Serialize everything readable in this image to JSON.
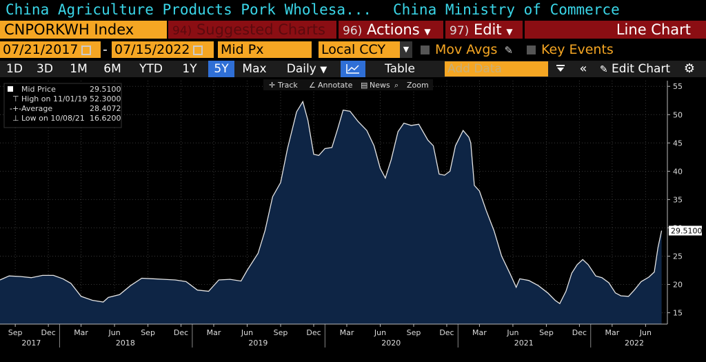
{
  "header": {
    "security_title": "China Agriculture Products Pork Wholesa...",
    "source": "China Ministry of Commerce"
  },
  "ticker": {
    "symbol": "CNPORKWH Index",
    "suggested_num": "94)",
    "suggested_label": "Suggested Charts",
    "actions_num": "96)",
    "actions_label": "Actions",
    "edit_num": "97)",
    "edit_label": "Edit",
    "chart_type": "Line Chart"
  },
  "dates": {
    "start": "07/21/2017",
    "dash": "-",
    "end": "07/15/2022",
    "field": "Mid Px",
    "currency": "Local CCY",
    "mov_avgs": "Mov Avgs",
    "key_events": "Key Events"
  },
  "controls": {
    "periods": [
      "1D",
      "3D",
      "1M",
      "6M",
      "YTD",
      "1Y",
      "5Y",
      "Max"
    ],
    "active_period": "5Y",
    "frequency": "Daily",
    "table": "Table",
    "add_data_placeholder": "Add Data",
    "edit_chart": "Edit Chart"
  },
  "toolbar": {
    "track": "Track",
    "annotate": "Annotate",
    "news": "News",
    "zoom": "Zoom"
  },
  "legend": {
    "mid_label": "Mid Price",
    "mid_value": "29.5100",
    "high_label": "High on 11/01/19",
    "high_value": "52.3000",
    "avg_label": "Average",
    "avg_value": "28.4072",
    "low_label": "Low on 10/08/21",
    "low_value": "16.6200"
  },
  "colors": {
    "accent_orange": "#f5a623",
    "dark_red": "#8b0e13",
    "title_cyan": "#3ad6e8",
    "area_fill": "#0e2545",
    "line": "#e6e6e6"
  },
  "chart_data": {
    "type": "area",
    "series_name": "Mid Price",
    "last_value_label": "29.5100",
    "ylim": [
      13,
      56
    ],
    "yticks": [
      15,
      20,
      25,
      30,
      35,
      40,
      45,
      50,
      55
    ],
    "xlim": [
      "2017-07-21",
      "2022-07-31"
    ],
    "month_ticks": [
      {
        "date": "2017-09-01",
        "label": "Sep"
      },
      {
        "date": "2017-12-01",
        "label": "Dec"
      },
      {
        "date": "2018-03-01",
        "label": "Mar"
      },
      {
        "date": "2018-06-01",
        "label": "Jun"
      },
      {
        "date": "2018-09-01",
        "label": "Sep"
      },
      {
        "date": "2018-12-01",
        "label": "Dec"
      },
      {
        "date": "2019-03-01",
        "label": "Mar"
      },
      {
        "date": "2019-06-01",
        "label": "Jun"
      },
      {
        "date": "2019-09-01",
        "label": "Sep"
      },
      {
        "date": "2019-12-01",
        "label": "Dec"
      },
      {
        "date": "2020-03-01",
        "label": "Mar"
      },
      {
        "date": "2020-06-01",
        "label": "Jun"
      },
      {
        "date": "2020-09-01",
        "label": "Sep"
      },
      {
        "date": "2020-12-01",
        "label": "Dec"
      },
      {
        "date": "2021-03-01",
        "label": "Mar"
      },
      {
        "date": "2021-06-01",
        "label": "Jun"
      },
      {
        "date": "2021-09-01",
        "label": "Sep"
      },
      {
        "date": "2021-12-01",
        "label": "Dec"
      },
      {
        "date": "2022-03-01",
        "label": "Mar"
      },
      {
        "date": "2022-06-01",
        "label": "Jun"
      }
    ],
    "year_labels": [
      {
        "date": "2017-10-15",
        "label": "2017"
      },
      {
        "date": "2018-07-01",
        "label": "2018"
      },
      {
        "date": "2019-07-01",
        "label": "2019"
      },
      {
        "date": "2020-07-01",
        "label": "2020"
      },
      {
        "date": "2021-07-01",
        "label": "2021"
      },
      {
        "date": "2022-05-01",
        "label": "2022"
      }
    ],
    "points": [
      [
        "2017-07-21",
        20.8
      ],
      [
        "2017-08-15",
        21.5
      ],
      [
        "2017-09-15",
        21.4
      ],
      [
        "2017-10-15",
        21.2
      ],
      [
        "2017-11-15",
        21.6
      ],
      [
        "2017-12-15",
        21.6
      ],
      [
        "2018-01-10",
        21.0
      ],
      [
        "2018-02-01",
        20.2
      ],
      [
        "2018-03-01",
        17.9
      ],
      [
        "2018-04-01",
        17.2
      ],
      [
        "2018-05-01",
        16.9
      ],
      [
        "2018-05-15",
        17.7
      ],
      [
        "2018-06-15",
        18.2
      ],
      [
        "2018-07-15",
        19.8
      ],
      [
        "2018-08-15",
        21.1
      ],
      [
        "2018-09-15",
        21.0
      ],
      [
        "2018-10-15",
        20.9
      ],
      [
        "2018-11-15",
        20.8
      ],
      [
        "2018-12-15",
        20.5
      ],
      [
        "2019-01-15",
        19.0
      ],
      [
        "2019-02-15",
        18.8
      ],
      [
        "2019-03-15",
        20.8
      ],
      [
        "2019-04-15",
        20.9
      ],
      [
        "2019-05-15",
        20.6
      ],
      [
        "2019-06-01",
        22.5
      ],
      [
        "2019-07-01",
        25.5
      ],
      [
        "2019-07-20",
        29.5
      ],
      [
        "2019-08-10",
        35.5
      ],
      [
        "2019-09-01",
        38.0
      ],
      [
        "2019-09-20",
        44.0
      ],
      [
        "2019-10-15",
        50.5
      ],
      [
        "2019-11-01",
        52.3
      ],
      [
        "2019-11-15",
        49.0
      ],
      [
        "2019-12-01",
        43.0
      ],
      [
        "2019-12-15",
        42.8
      ],
      [
        "2020-01-01",
        44.0
      ],
      [
        "2020-01-20",
        44.2
      ],
      [
        "2020-02-05",
        47.5
      ],
      [
        "2020-02-20",
        50.8
      ],
      [
        "2020-03-10",
        50.6
      ],
      [
        "2020-04-01",
        48.8
      ],
      [
        "2020-04-25",
        47.2
      ],
      [
        "2020-05-15",
        44.5
      ],
      [
        "2020-06-01",
        40.5
      ],
      [
        "2020-06-15",
        38.8
      ],
      [
        "2020-07-01",
        42.0
      ],
      [
        "2020-07-20",
        47.0
      ],
      [
        "2020-08-05",
        48.5
      ],
      [
        "2020-08-25",
        48.1
      ],
      [
        "2020-09-15",
        48.3
      ],
      [
        "2020-10-10",
        45.5
      ],
      [
        "2020-10-25",
        44.5
      ],
      [
        "2020-11-10",
        39.5
      ],
      [
        "2020-11-25",
        39.3
      ],
      [
        "2020-12-10",
        40.0
      ],
      [
        "2020-12-25",
        44.5
      ],
      [
        "2021-01-15",
        47.2
      ],
      [
        "2021-01-31",
        46.0
      ],
      [
        "2021-02-05",
        45.0
      ],
      [
        "2021-02-15",
        37.5
      ],
      [
        "2021-03-01",
        36.5
      ],
      [
        "2021-03-20",
        33.0
      ],
      [
        "2021-04-10",
        29.5
      ],
      [
        "2021-05-01",
        25.0
      ],
      [
        "2021-05-25",
        21.8
      ],
      [
        "2021-06-10",
        19.5
      ],
      [
        "2021-06-20",
        21.0
      ],
      [
        "2021-07-15",
        20.7
      ],
      [
        "2021-08-10",
        19.8
      ],
      [
        "2021-09-05",
        18.5
      ],
      [
        "2021-09-25",
        17.2
      ],
      [
        "2021-10-08",
        16.62
      ],
      [
        "2021-10-25",
        18.8
      ],
      [
        "2021-11-10",
        22.0
      ],
      [
        "2021-11-25",
        23.5
      ],
      [
        "2021-12-10",
        24.4
      ],
      [
        "2021-12-25",
        23.5
      ],
      [
        "2022-01-15",
        21.5
      ],
      [
        "2022-02-01",
        21.2
      ],
      [
        "2022-02-20",
        20.3
      ],
      [
        "2022-03-10",
        18.5
      ],
      [
        "2022-03-25",
        18.0
      ],
      [
        "2022-04-15",
        17.9
      ],
      [
        "2022-05-01",
        19.0
      ],
      [
        "2022-05-20",
        20.5
      ],
      [
        "2022-06-10",
        21.3
      ],
      [
        "2022-06-25",
        22.2
      ],
      [
        "2022-07-05",
        26.5
      ],
      [
        "2022-07-15",
        29.51
      ]
    ]
  }
}
